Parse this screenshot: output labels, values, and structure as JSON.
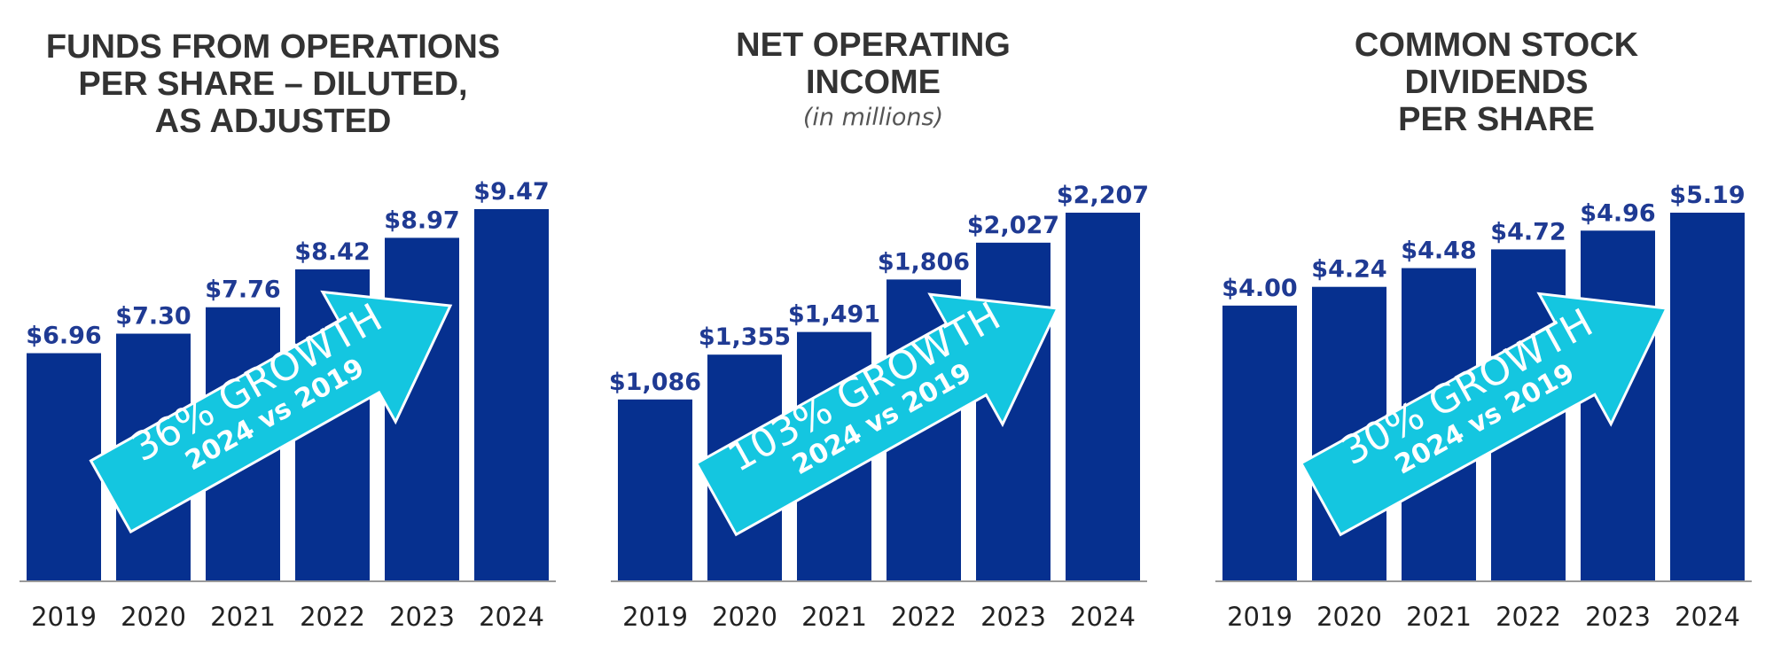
{
  "colors": {
    "bar": "#06308f",
    "arrow": "#14c6e0",
    "axis": "#9a9a9a",
    "value": "#1f3a93",
    "title": "#333333"
  },
  "chart_data": [
    {
      "type": "bar",
      "title_lines": [
        "FUNDS FROM OPERATIONS",
        "PER SHARE – DILUTED,",
        "AS ADJUSTED"
      ],
      "subtitle": "",
      "categories": [
        "2019",
        "2020",
        "2021",
        "2022",
        "2023",
        "2024"
      ],
      "values": [
        6.96,
        7.3,
        7.76,
        8.42,
        8.97,
        9.47
      ],
      "value_labels": [
        "$6.96",
        "$7.30",
        "$7.76",
        "$8.42",
        "$8.97",
        "$9.47"
      ],
      "ylim": [
        3.0,
        9.47
      ],
      "annotation": {
        "line1": "36% GROWTH",
        "line2": "2024 vs 2019"
      }
    },
    {
      "type": "bar",
      "title_lines": [
        "NET OPERATING",
        "INCOME"
      ],
      "subtitle": "(in millions)",
      "categories": [
        "2019",
        "2020",
        "2021",
        "2022",
        "2023",
        "2024"
      ],
      "values": [
        1086,
        1355,
        1491,
        1806,
        2027,
        2207
      ],
      "value_labels": [
        "$1,086",
        "$1,355",
        "$1,491",
        "$1,806",
        "$2,027",
        "$2,207"
      ],
      "ylim": [
        0,
        2207
      ],
      "annotation": {
        "line1": "103% GROWTH",
        "line2": "2024 vs 2019"
      }
    },
    {
      "type": "bar",
      "title_lines": [
        "COMMON STOCK",
        "DIVIDENDS",
        "PER SHARE"
      ],
      "subtitle": "",
      "categories": [
        "2019",
        "2020",
        "2021",
        "2022",
        "2023",
        "2024"
      ],
      "values": [
        4.0,
        4.24,
        4.48,
        4.72,
        4.96,
        5.19
      ],
      "value_labels": [
        "$4.00",
        "$4.24",
        "$4.48",
        "$4.72",
        "$4.96",
        "$5.19"
      ],
      "ylim": [
        0.48,
        5.19
      ],
      "annotation": {
        "line1": "30% GROWTH",
        "line2": "2024 vs 2019"
      }
    }
  ]
}
